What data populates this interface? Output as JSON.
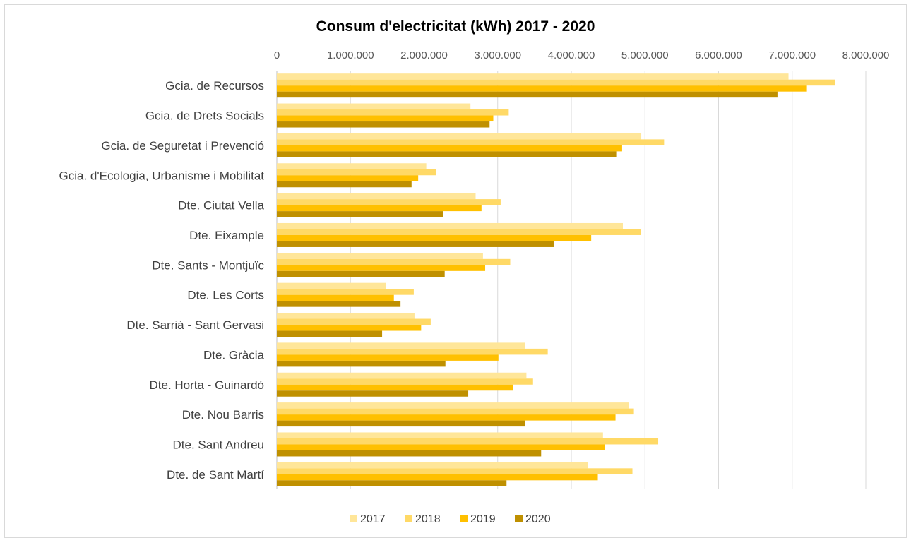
{
  "chart_data": {
    "type": "bar",
    "orientation": "horizontal",
    "title": "Consum d'electricitat (kWh) 2017 - 2020",
    "xlabel": "",
    "ylabel": "",
    "xlim": [
      0,
      8000000
    ],
    "x_ticks": [
      0,
      1000000,
      2000000,
      3000000,
      4000000,
      5000000,
      6000000,
      7000000,
      8000000
    ],
    "x_tick_labels": [
      "0",
      "1.000.000",
      "2.000.000",
      "3.000.000",
      "4.000.000",
      "5.000.000",
      "6.000.000",
      "7.000.000",
      "8.000.000"
    ],
    "x_axis_position": "top",
    "grid": true,
    "legend_position": "bottom",
    "categories": [
      "Gcia. de Recursos",
      "Gcia. de Drets Socials",
      "Gcia. de Seguretat i Prevenció",
      "Gcia. d'Ecologia, Urbanisme i Mobilitat",
      "Dte. Ciutat Vella",
      "Dte. Eixample",
      "Dte. Sants - Montjuïc",
      "Dte. Les Corts",
      "Dte. Sarrià - Sant Gervasi",
      "Dte. Gràcia",
      "Dte. Horta - Guinardó",
      "Dte. Nou Barris",
      "Dte. Sant Andreu",
      "Dte. de Sant Martí"
    ],
    "series": [
      {
        "name": "2017",
        "color": "#ffe699",
        "values": [
          6950000,
          2630000,
          4950000,
          2030000,
          2700000,
          4700000,
          2800000,
          1480000,
          1870000,
          3370000,
          3390000,
          4780000,
          4430000,
          4230000
        ]
      },
      {
        "name": "2018",
        "color": "#ffd966",
        "values": [
          7580000,
          3150000,
          5260000,
          2160000,
          3040000,
          4940000,
          3170000,
          1860000,
          2090000,
          3680000,
          3480000,
          4850000,
          5180000,
          4830000
        ]
      },
      {
        "name": "2019",
        "color": "#ffc000",
        "values": [
          7200000,
          2940000,
          4690000,
          1920000,
          2780000,
          4270000,
          2830000,
          1590000,
          1960000,
          3010000,
          3210000,
          4600000,
          4460000,
          4360000
        ]
      },
      {
        "name": "2020",
        "color": "#bf9000",
        "values": [
          6800000,
          2890000,
          4610000,
          1830000,
          2260000,
          3760000,
          2280000,
          1680000,
          1430000,
          2290000,
          2600000,
          3370000,
          3590000,
          3120000
        ]
      }
    ]
  }
}
